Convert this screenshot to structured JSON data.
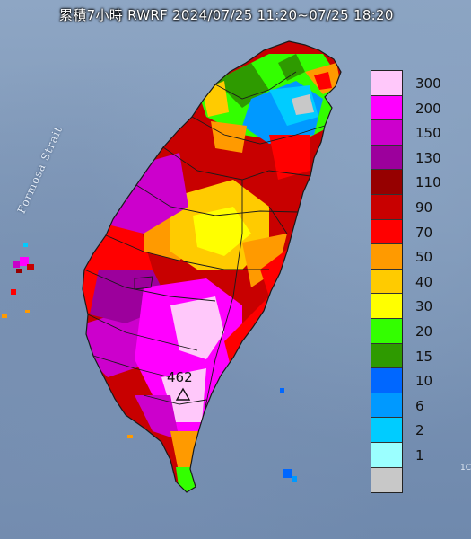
{
  "title": "累積7小時 RWRF 2024/07/25 11:20~07/25 18:20",
  "strait_label": "Formosa Strait",
  "peak": {
    "value": "462"
  },
  "corner_fragment": "1C",
  "legend": [
    {
      "label": "300",
      "color": "#ffc8fa"
    },
    {
      "label": "200",
      "color": "#ff00ff"
    },
    {
      "label": "150",
      "color": "#cc00cc"
    },
    {
      "label": "130",
      "color": "#9c009c"
    },
    {
      "label": "110",
      "color": "#960000"
    },
    {
      "label": "90",
      "color": "#c80000"
    },
    {
      "label": "70",
      "color": "#ff0000"
    },
    {
      "label": "50",
      "color": "#ff9a00"
    },
    {
      "label": "40",
      "color": "#ffcb00"
    },
    {
      "label": "30",
      "color": "#ffff00"
    },
    {
      "label": "20",
      "color": "#33ff00"
    },
    {
      "label": "15",
      "color": "#2e9a00"
    },
    {
      "label": "10",
      "color": "#0067ff"
    },
    {
      "label": "6",
      "color": "#0099ff"
    },
    {
      "label": "2",
      "color": "#00ccff"
    },
    {
      "label": "1",
      "color": "#9bffff"
    },
    {
      "label": "",
      "color": "#c8c8c8"
    }
  ]
}
